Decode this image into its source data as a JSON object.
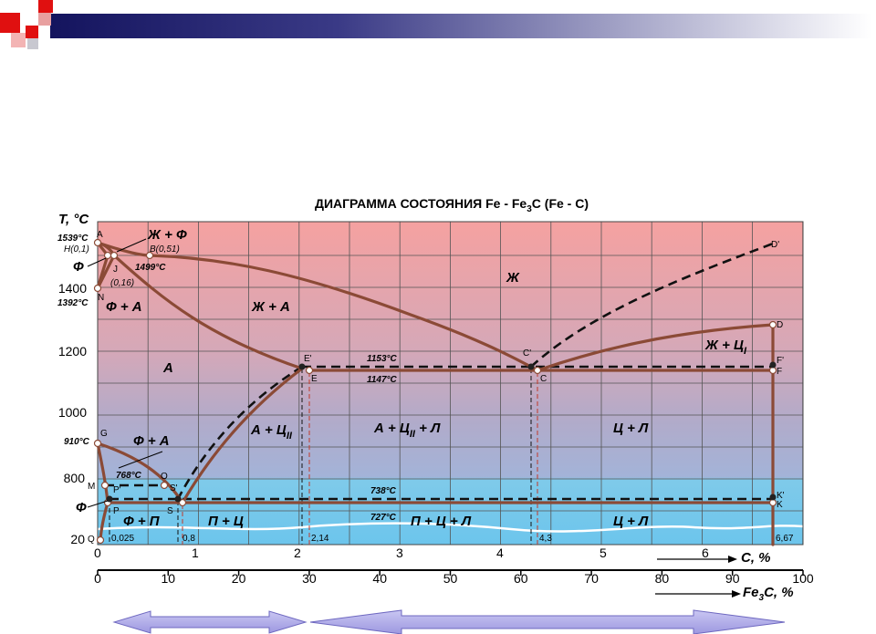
{
  "title": {
    "text": "ДИАГРАММА СОСТОЯНИЯ Fe - Fe",
    "sub": "3",
    "tail": "C (Fe - C)"
  },
  "temperature_axis": {
    "label": "T, °C",
    "ticks": [
      "1400",
      "1200",
      "1000",
      "800",
      "20"
    ]
  },
  "carbon_axis": {
    "label": "C, %",
    "ticks": [
      "0",
      "1",
      "2",
      "3",
      "4",
      "5",
      "6"
    ]
  },
  "cementite_axis": {
    "label": "Fe",
    "sub": "3",
    "tail": "C, %",
    "ticks": [
      "0",
      "10",
      "20",
      "30",
      "40",
      "50",
      "60",
      "70",
      "80",
      "90",
      "100"
    ]
  },
  "points": [
    "A",
    "J",
    "N",
    "G",
    "M",
    "O",
    "P",
    "P'",
    "S",
    "S'",
    "Q",
    "E",
    "E'",
    "C",
    "C'",
    "F",
    "F'",
    "D",
    "D'",
    "K",
    "K'"
  ],
  "temperatures": [
    "1539°C",
    "1499°C",
    "1392°C",
    "910°C",
    "768°C",
    "1153°C",
    "1147°C",
    "738°C",
    "727°C"
  ],
  "compositions": [
    "H(0,1)",
    "B(0,51)",
    "(0,16)",
    "0,025",
    "0,8",
    "2,14",
    "4,3",
    "6,67"
  ],
  "phases": [
    {
      "text": "Ж + Ф"
    },
    {
      "text": "Ф"
    },
    {
      "text": "Ф + А"
    },
    {
      "text": "Ж + А"
    },
    {
      "text": "Ж"
    },
    {
      "text": "А"
    },
    {
      "text": "Ж + Ц",
      "sub": "I"
    },
    {
      "text": "А + Ц",
      "sub": "II"
    },
    {
      "text": "А + Ц",
      "sub": "II",
      "tail": " + Л"
    },
    {
      "text": "Ц + Л"
    },
    {
      "text": "Ф + А"
    },
    {
      "text": "Ф"
    },
    {
      "text": "Ф + П"
    },
    {
      "text": "П + Ц"
    },
    {
      "text": "П + Ц + Л"
    },
    {
      "text": "Ц + Л"
    }
  ]
}
